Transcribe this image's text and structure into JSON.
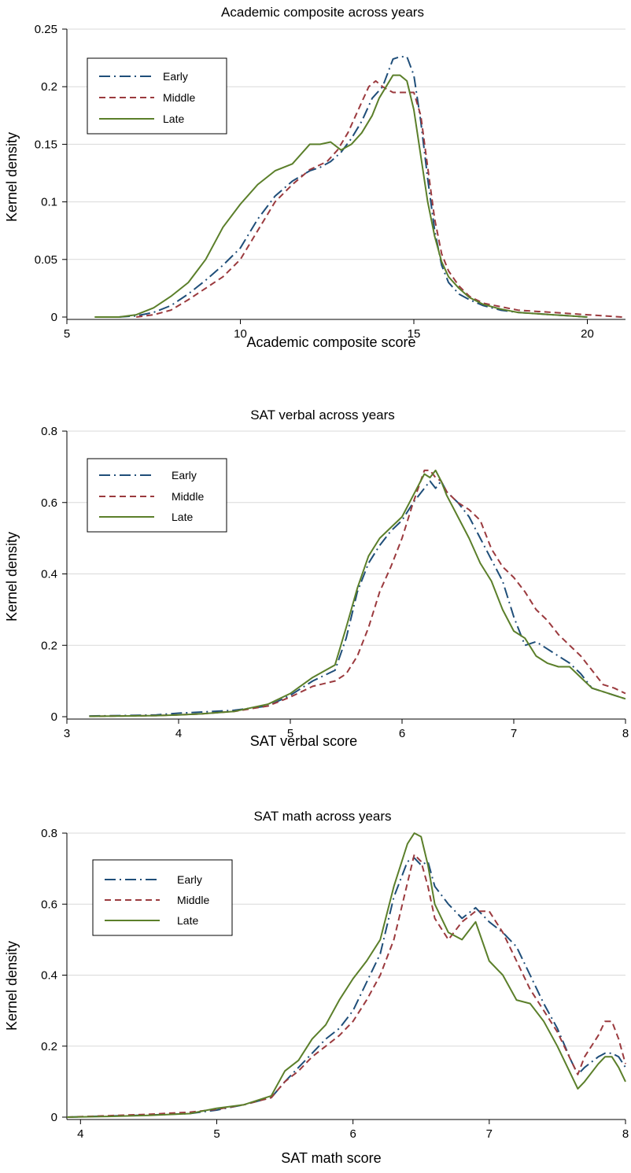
{
  "series_styles": {
    "Early": {
      "color": "#1f4e79",
      "dash": "14,5,2,5"
    },
    "Middle": {
      "color": "#9b3a3e",
      "dash": "8,5"
    },
    "Late": {
      "color": "#5b7f2a",
      "dash": ""
    }
  },
  "chart_data": [
    {
      "type": "line",
      "title": "Academic composite across years",
      "xlabel": "Academic composite score",
      "ylabel": "Kernel density",
      "xlim": [
        5,
        21.1
      ],
      "ylim": [
        0,
        0.25
      ],
      "xticks": [
        5,
        10,
        15,
        20
      ],
      "yticks": [
        0,
        0.05,
        0.1,
        0.15,
        0.2,
        0.25
      ],
      "ytick_labels": [
        "0",
        "0.05",
        "0.1",
        "0.15",
        "0.2",
        "0.25"
      ],
      "grid": true,
      "legend_position": "top-left",
      "series": [
        {
          "name": "Early",
          "x": [
            6.5,
            7,
            7.5,
            8,
            8.5,
            9,
            9.5,
            10,
            10.5,
            11,
            11.5,
            12,
            12.3,
            12.6,
            12.9,
            13.2,
            13.5,
            13.8,
            14.1,
            14.4,
            14.6,
            14.8,
            15,
            15.2,
            15.4,
            15.6,
            15.8,
            16,
            16.3,
            16.6,
            17,
            17.5,
            18,
            18.5,
            19,
            19.5,
            20
          ],
          "y": [
            0,
            0.001,
            0.004,
            0.01,
            0.02,
            0.032,
            0.045,
            0.06,
            0.085,
            0.105,
            0.118,
            0.127,
            0.13,
            0.135,
            0.143,
            0.155,
            0.17,
            0.19,
            0.2,
            0.224,
            0.226,
            0.226,
            0.21,
            0.17,
            0.12,
            0.075,
            0.045,
            0.03,
            0.02,
            0.015,
            0.01,
            0.006,
            0.004,
            0.003,
            0.002,
            0.001,
            0
          ]
        },
        {
          "name": "Middle",
          "x": [
            7,
            7.5,
            8,
            8.5,
            9,
            9.5,
            10,
            10.5,
            11,
            11.5,
            12,
            12.5,
            12.8,
            13.1,
            13.4,
            13.7,
            13.9,
            14.1,
            14.4,
            14.7,
            15,
            15.2,
            15.4,
            15.6,
            15.8,
            16,
            16.3,
            16.6,
            17,
            17.5,
            18,
            18.5,
            19,
            19.5,
            20,
            20.5,
            21
          ],
          "y": [
            0,
            0.002,
            0.006,
            0.015,
            0.025,
            0.035,
            0.05,
            0.075,
            0.1,
            0.115,
            0.128,
            0.135,
            0.145,
            0.16,
            0.18,
            0.2,
            0.205,
            0.2,
            0.195,
            0.195,
            0.195,
            0.175,
            0.13,
            0.085,
            0.055,
            0.04,
            0.027,
            0.018,
            0.012,
            0.009,
            0.006,
            0.005,
            0.004,
            0.003,
            0.002,
            0.001,
            0
          ]
        },
        {
          "name": "Late",
          "x": [
            5.8,
            6.5,
            7,
            7.5,
            8,
            8.5,
            9,
            9.5,
            10,
            10.5,
            11,
            11.5,
            12,
            12.3,
            12.6,
            12.9,
            13.2,
            13.5,
            13.8,
            14,
            14.2,
            14.4,
            14.6,
            14.8,
            15,
            15.2,
            15.4,
            15.6,
            15.8,
            16,
            16.3,
            16.6,
            17,
            17.5,
            18,
            18.5,
            19,
            19.5,
            20
          ],
          "y": [
            0,
            0,
            0.002,
            0.008,
            0.018,
            0.03,
            0.05,
            0.078,
            0.098,
            0.115,
            0.127,
            0.133,
            0.15,
            0.15,
            0.152,
            0.145,
            0.15,
            0.16,
            0.175,
            0.19,
            0.2,
            0.21,
            0.21,
            0.205,
            0.18,
            0.14,
            0.1,
            0.07,
            0.048,
            0.035,
            0.025,
            0.017,
            0.011,
            0.007,
            0.004,
            0.003,
            0.002,
            0.001,
            0
          ]
        }
      ]
    },
    {
      "type": "line",
      "title": "SAT verbal across years",
      "xlabel": "SAT verbal score",
      "ylabel": "Kernel density",
      "xlim": [
        3,
        8
      ],
      "ylim": [
        0,
        0.8
      ],
      "xticks": [
        3,
        4,
        5,
        6,
        7,
        8
      ],
      "yticks": [
        0,
        0.2,
        0.4,
        0.6,
        0.8
      ],
      "ytick_labels": [
        "0",
        "0.2",
        "0.4",
        "0.6",
        "0.8"
      ],
      "grid": true,
      "legend_position": "top-left",
      "series": [
        {
          "name": "Early",
          "x": [
            3.2,
            3.5,
            3.8,
            4.0,
            4.2,
            4.5,
            4.8,
            5.0,
            5.2,
            5.4,
            5.5,
            5.6,
            5.7,
            5.8,
            5.9,
            6.0,
            6.1,
            6.2,
            6.25,
            6.3,
            6.35,
            6.4,
            6.5,
            6.6,
            6.7,
            6.8,
            6.9,
            7.0,
            7.1,
            7.2,
            7.3,
            7.4,
            7.5,
            7.6,
            7.7,
            7.8,
            7.9,
            8.0
          ],
          "y": [
            0.002,
            0.003,
            0.005,
            0.01,
            0.013,
            0.018,
            0.03,
            0.06,
            0.1,
            0.13,
            0.22,
            0.35,
            0.43,
            0.48,
            0.52,
            0.55,
            0.6,
            0.64,
            0.66,
            0.64,
            0.66,
            0.63,
            0.6,
            0.56,
            0.5,
            0.44,
            0.38,
            0.28,
            0.2,
            0.21,
            0.19,
            0.17,
            0.15,
            0.12,
            0.08,
            0.07,
            0.06,
            0.05
          ]
        },
        {
          "name": "Middle",
          "x": [
            3.2,
            3.5,
            3.8,
            4.0,
            4.2,
            4.5,
            4.8,
            5.0,
            5.2,
            5.4,
            5.5,
            5.6,
            5.7,
            5.8,
            5.9,
            6.0,
            6.1,
            6.2,
            6.25,
            6.3,
            6.35,
            6.4,
            6.5,
            6.6,
            6.7,
            6.8,
            6.9,
            7.0,
            7.1,
            7.2,
            7.3,
            7.4,
            7.5,
            7.6,
            7.7,
            7.8,
            7.9,
            8.0
          ],
          "y": [
            0.001,
            0.002,
            0.003,
            0.005,
            0.008,
            0.015,
            0.03,
            0.055,
            0.085,
            0.1,
            0.12,
            0.17,
            0.25,
            0.35,
            0.42,
            0.5,
            0.6,
            0.69,
            0.69,
            0.67,
            0.66,
            0.63,
            0.6,
            0.58,
            0.55,
            0.47,
            0.42,
            0.39,
            0.35,
            0.3,
            0.27,
            0.23,
            0.2,
            0.17,
            0.13,
            0.09,
            0.08,
            0.065
          ]
        },
        {
          "name": "Late",
          "x": [
            3.2,
            3.5,
            3.8,
            4.0,
            4.2,
            4.5,
            4.8,
            5.0,
            5.2,
            5.4,
            5.5,
            5.6,
            5.7,
            5.8,
            5.9,
            6.0,
            6.1,
            6.2,
            6.25,
            6.3,
            6.35,
            6.4,
            6.5,
            6.6,
            6.7,
            6.8,
            6.9,
            7.0,
            7.1,
            7.2,
            7.3,
            7.4,
            7.5,
            7.6,
            7.7,
            7.8,
            7.9,
            8.0
          ],
          "y": [
            0.001,
            0.002,
            0.003,
            0.005,
            0.008,
            0.015,
            0.035,
            0.065,
            0.11,
            0.145,
            0.25,
            0.36,
            0.45,
            0.5,
            0.53,
            0.56,
            0.62,
            0.68,
            0.67,
            0.69,
            0.66,
            0.62,
            0.56,
            0.5,
            0.43,
            0.38,
            0.3,
            0.24,
            0.22,
            0.17,
            0.15,
            0.14,
            0.14,
            0.11,
            0.08,
            0.07,
            0.06,
            0.05
          ]
        }
      ]
    },
    {
      "type": "line",
      "title": "SAT math across years",
      "xlabel": "SAT math score",
      "ylabel": "Kernel density",
      "xlim": [
        3.9,
        8
      ],
      "ylim": [
        0,
        0.8
      ],
      "xticks": [
        4,
        5,
        6,
        7,
        8
      ],
      "yticks": [
        0,
        0.2,
        0.4,
        0.6,
        0.8
      ],
      "ytick_labels": [
        "0",
        "0.2",
        "0.4",
        "0.6",
        "0.8"
      ],
      "grid": true,
      "legend_position": "top-left",
      "series": [
        {
          "name": "Early",
          "x": [
            3.9,
            4.2,
            4.5,
            4.8,
            5.0,
            5.2,
            5.4,
            5.5,
            5.6,
            5.7,
            5.8,
            5.9,
            6.0,
            6.1,
            6.2,
            6.3,
            6.4,
            6.45,
            6.5,
            6.55,
            6.6,
            6.7,
            6.8,
            6.9,
            7.0,
            7.1,
            7.2,
            7.3,
            7.4,
            7.5,
            7.6,
            7.65,
            7.7,
            7.8,
            7.85,
            7.9,
            7.95,
            8.0
          ],
          "y": [
            0,
            0.003,
            0.006,
            0.01,
            0.02,
            0.035,
            0.055,
            0.1,
            0.14,
            0.18,
            0.22,
            0.25,
            0.3,
            0.38,
            0.46,
            0.62,
            0.72,
            0.73,
            0.71,
            0.72,
            0.65,
            0.6,
            0.56,
            0.59,
            0.55,
            0.52,
            0.48,
            0.4,
            0.32,
            0.25,
            0.16,
            0.12,
            0.14,
            0.17,
            0.18,
            0.18,
            0.17,
            0.14
          ]
        },
        {
          "name": "Middle",
          "x": [
            3.9,
            4.2,
            4.5,
            4.8,
            5.0,
            5.2,
            5.4,
            5.5,
            5.6,
            5.7,
            5.8,
            5.9,
            6.0,
            6.1,
            6.2,
            6.3,
            6.4,
            6.45,
            6.5,
            6.55,
            6.6,
            6.7,
            6.8,
            6.9,
            7.0,
            7.1,
            7.2,
            7.3,
            7.4,
            7.5,
            7.6,
            7.65,
            7.7,
            7.8,
            7.85,
            7.9,
            7.95,
            8.0
          ],
          "y": [
            0,
            0.004,
            0.008,
            0.014,
            0.022,
            0.035,
            0.055,
            0.1,
            0.13,
            0.17,
            0.2,
            0.23,
            0.27,
            0.33,
            0.4,
            0.5,
            0.66,
            0.74,
            0.72,
            0.65,
            0.56,
            0.5,
            0.55,
            0.58,
            0.58,
            0.52,
            0.44,
            0.36,
            0.3,
            0.24,
            0.16,
            0.12,
            0.17,
            0.23,
            0.27,
            0.27,
            0.22,
            0.15
          ]
        },
        {
          "name": "Late",
          "x": [
            3.9,
            4.2,
            4.5,
            4.8,
            5.0,
            5.2,
            5.4,
            5.5,
            5.6,
            5.7,
            5.8,
            5.9,
            6.0,
            6.1,
            6.2,
            6.3,
            6.4,
            6.45,
            6.5,
            6.55,
            6.6,
            6.7,
            6.8,
            6.9,
            7.0,
            7.1,
            7.2,
            7.3,
            7.4,
            7.5,
            7.6,
            7.65,
            7.7,
            7.8,
            7.85,
            7.9,
            7.95,
            8.0
          ],
          "y": [
            0,
            0.002,
            0.005,
            0.01,
            0.025,
            0.035,
            0.06,
            0.13,
            0.16,
            0.22,
            0.26,
            0.33,
            0.39,
            0.44,
            0.5,
            0.65,
            0.77,
            0.8,
            0.79,
            0.71,
            0.6,
            0.52,
            0.5,
            0.55,
            0.44,
            0.4,
            0.33,
            0.32,
            0.27,
            0.2,
            0.12,
            0.08,
            0.1,
            0.15,
            0.17,
            0.17,
            0.14,
            0.1
          ]
        }
      ]
    }
  ]
}
